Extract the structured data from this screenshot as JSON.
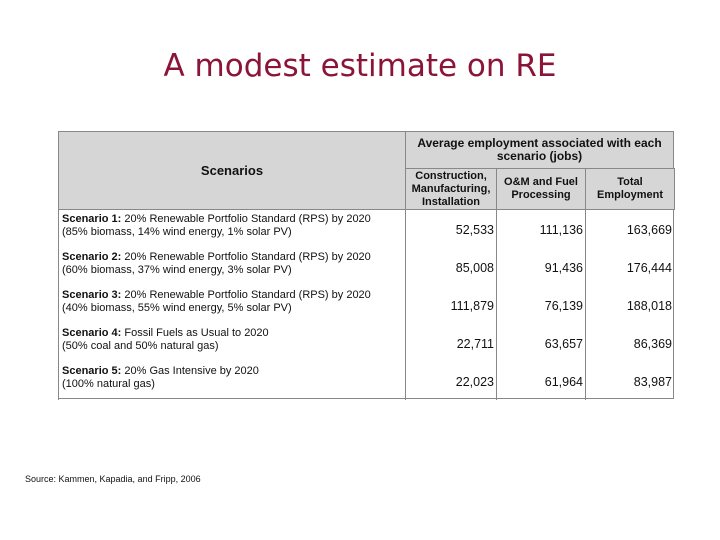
{
  "title": "A modest estimate on RE",
  "table": {
    "scenarios_header": "Scenarios",
    "group_header": "Average employment associated with each scenario (jobs)",
    "columns": [
      "Construction, Manufacturing, Installation",
      "O&M and Fuel Processing",
      "Total Employment"
    ],
    "rows": [
      {
        "label": "Scenario 1:",
        "line1": "20% Renewable Portfolio Standard (RPS) by 2020",
        "line2": "(85% biomass, 14% wind energy, 1% solar PV)",
        "values": [
          "52,533",
          "111,136",
          "163,669"
        ]
      },
      {
        "label": "Scenario 2:",
        "line1": "20% Renewable Portfolio Standard (RPS) by 2020",
        "line2": "(60% biomass, 37% wind energy, 3% solar PV)",
        "values": [
          "85,008",
          "91,436",
          "176,444"
        ]
      },
      {
        "label": "Scenario 3:",
        "line1": "20% Renewable Portfolio Standard (RPS) by 2020",
        "line2": "(40% biomass, 55% wind energy, 5% solar PV)",
        "values": [
          "111,879",
          "76,139",
          "188,018"
        ]
      },
      {
        "label": "Scenario 4:",
        "line1": "Fossil Fuels as Usual to 2020",
        "line2": "(50% coal and 50% natural gas)",
        "values": [
          "22,711",
          "63,657",
          "86,369"
        ]
      },
      {
        "label": "Scenario 5:",
        "line1": "20%  Gas Intensive by 2020",
        "line2": "(100% natural gas)",
        "values": [
          "22,023",
          "61,964",
          "83,987"
        ]
      }
    ]
  },
  "source": "Source: Kammen, Kapadia, and Fripp, 2006"
}
